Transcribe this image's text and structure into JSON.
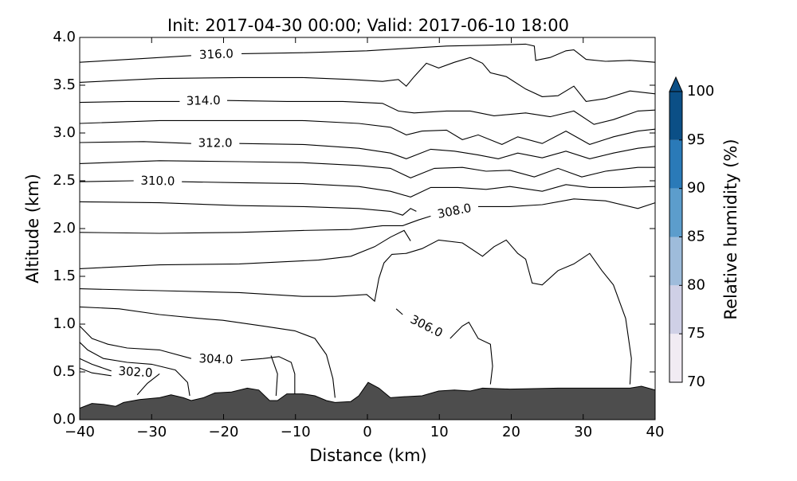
{
  "chart_data": {
    "type": "contour",
    "title": "Init: 2017-04-30 00:00; Valid: 2017-06-10 18:00",
    "x_label": "Distance (km)",
    "y_label": "Altitude (km)",
    "xlim": [
      -40,
      40
    ],
    "ylim": [
      0,
      4
    ],
    "xticks": [
      {
        "value": -40,
        "label": "−40"
      },
      {
        "value": -30,
        "label": "−30"
      },
      {
        "value": -20,
        "label": "−20"
      },
      {
        "value": -10,
        "label": "−10"
      },
      0,
      10,
      20,
      30,
      40
    ],
    "yticks": [
      {
        "value": 0,
        "label": "0.0"
      },
      0.5,
      {
        "value": 1,
        "label": "1.0"
      },
      1.5,
      {
        "value": 2,
        "label": "2.0"
      },
      2.5,
      {
        "value": 3,
        "label": "3.0"
      },
      3.5,
      {
        "value": 4,
        "label": "4.0"
      }
    ],
    "contour_color": "#000000",
    "contours": [
      {
        "label": "316.0",
        "x": [
          -40,
          -31.1,
          -24.5,
          null,
          -17.5,
          -9.0,
          -0.1,
          6.5,
          11.0,
          17.6,
          22.0,
          23.2,
          23.4,
          25.4,
          27.6,
          28.7,
          30.4,
          33.1,
          36.5,
          40
        ],
        "y": [
          3.74,
          3.78,
          3.81,
          null,
          3.83,
          3.84,
          3.86,
          3.89,
          3.91,
          3.92,
          3.93,
          3.91,
          3.76,
          3.79,
          3.86,
          3.87,
          3.77,
          3.75,
          3.76,
          3.74
        ]
      },
      {
        "x": [
          -40,
          -28.9,
          -17.8,
          -9.0,
          -2.3,
          2.1,
          4.3,
          5.4,
          6.5,
          8.2,
          9.9,
          12.1,
          14.3,
          16.0,
          17.1,
          19.3,
          22.0,
          24.3,
          26.5,
          28.7,
          30.4,
          33.1,
          36.5,
          40
        ],
        "y": [
          3.53,
          3.57,
          3.58,
          3.58,
          3.56,
          3.54,
          3.56,
          3.49,
          3.59,
          3.73,
          3.68,
          3.74,
          3.79,
          3.73,
          3.63,
          3.59,
          3.46,
          3.38,
          3.39,
          3.49,
          3.33,
          3.36,
          3.44,
          3.41
        ]
      },
      {
        "label": "314.0",
        "x": [
          -40,
          -33.4,
          -26.1,
          null,
          -19.5,
          -11.2,
          -3.4,
          2.1,
          4.3,
          6.5,
          11.0,
          14.3,
          17.6,
          22.0,
          25.4,
          28.7,
          31.5,
          34.2,
          37.6,
          40
        ],
        "y": [
          3.32,
          3.33,
          3.33,
          null,
          3.34,
          3.33,
          3.33,
          3.31,
          3.23,
          3.21,
          3.23,
          3.23,
          3.18,
          3.21,
          3.17,
          3.23,
          3.09,
          3.14,
          3.23,
          3.24
        ]
      },
      {
        "x": [
          -40,
          -28.9,
          -17.8,
          -9.0,
          -1.2,
          3.2,
          5.4,
          7.6,
          11.0,
          13.2,
          15.4,
          18.7,
          20.9,
          24.3,
          27.6,
          30.9,
          34.2,
          37.6,
          40
        ],
        "y": [
          3.1,
          3.13,
          3.13,
          3.13,
          3.1,
          3.06,
          2.98,
          3.02,
          3.03,
          2.93,
          2.98,
          2.88,
          2.96,
          2.89,
          3.02,
          2.88,
          2.96,
          3.02,
          3.04
        ]
      },
      {
        "label": "312.0",
        "x": [
          -40,
          -31.1,
          -24.5,
          null,
          -17.8,
          -9.0,
          -1.2,
          3.2,
          5.4,
          8.8,
          12.1,
          15.4,
          18.2,
          20.9,
          24.3,
          27.6,
          30.9,
          34.2,
          37.6,
          40
        ],
        "y": [
          2.9,
          2.91,
          2.89,
          null,
          2.89,
          2.88,
          2.84,
          2.79,
          2.73,
          2.83,
          2.81,
          2.77,
          2.73,
          2.79,
          2.74,
          2.81,
          2.73,
          2.79,
          2.84,
          2.86
        ]
      },
      {
        "x": [
          -40,
          -28.9,
          -17.8,
          -9.0,
          -1.2,
          3.2,
          6.0,
          9.3,
          13.2,
          16.5,
          19.8,
          23.2,
          26.5,
          29.8,
          33.1,
          37.6,
          40
        ],
        "y": [
          2.68,
          2.71,
          2.7,
          2.69,
          2.66,
          2.63,
          2.53,
          2.63,
          2.64,
          2.6,
          2.61,
          2.54,
          2.63,
          2.54,
          2.6,
          2.64,
          2.64
        ]
      },
      {
        "label": "310.0",
        "x": [
          -40,
          -32.5,
          null,
          -25.8,
          -17.8,
          -9.0,
          -1.2,
          3.2,
          6.0,
          8.8,
          12.6,
          16.5,
          19.8,
          24.3,
          27.6,
          30.9,
          35.3,
          40
        ],
        "y": [
          2.49,
          2.5,
          null,
          2.49,
          2.48,
          2.47,
          2.44,
          2.39,
          2.33,
          2.43,
          2.43,
          2.41,
          2.44,
          2.39,
          2.46,
          2.43,
          2.43,
          2.44
        ]
      },
      {
        "x": [
          -40,
          -28.9,
          -17.8,
          -9.0,
          -1.2,
          3.2,
          4.9,
          6.0,
          6.8
        ],
        "y": [
          2.28,
          2.27,
          2.24,
          2.23,
          2.21,
          2.18,
          2.14,
          2.21,
          2.18
        ]
      },
      {
        "label": "308.0",
        "x": [
          -40,
          -28.9,
          -17.8,
          -9.0,
          -2.3,
          2.1,
          4.9,
          7.1,
          8.8,
          null,
          15.4,
          19.8,
          24.3,
          28.7,
          33.1,
          37.6,
          40
        ],
        "y": [
          1.96,
          1.95,
          1.96,
          1.98,
          1.99,
          2.03,
          2.03,
          2.09,
          2.13,
          null,
          2.23,
          2.23,
          2.25,
          2.31,
          2.29,
          2.21,
          2.27
        ]
      },
      {
        "x": [
          -40,
          -28.9,
          -17.8,
          -6.8,
          -2.3,
          1.0,
          3.2,
          5.1,
          6.0
        ],
        "y": [
          1.58,
          1.62,
          1.63,
          1.67,
          1.71,
          1.81,
          1.91,
          1.98,
          1.87
        ]
      },
      {
        "x": [
          -40,
          -28.9,
          -17.8,
          -9.0,
          -4.5,
          -0.1,
          1.0,
          1.6,
          2.3,
          3.4,
          5.4,
          7.6,
          9.9,
          13.2,
          16.0,
          17.6,
          19.3,
          20.9,
          22.0,
          22.9,
          24.3,
          26.5,
          28.7,
          30.9,
          32.6,
          34.2,
          35.9,
          36.7,
          36.5
        ],
        "y": [
          1.37,
          1.35,
          1.33,
          1.29,
          1.29,
          1.31,
          1.24,
          1.48,
          1.64,
          1.73,
          1.74,
          1.79,
          1.88,
          1.85,
          1.71,
          1.81,
          1.88,
          1.74,
          1.68,
          1.43,
          1.41,
          1.56,
          1.63,
          1.74,
          1.56,
          1.41,
          1.06,
          0.64,
          0.37
        ]
      },
      {
        "label": "306.0",
        "x": [
          4.0,
          4.9,
          null,
          11.5,
          13.2,
          14.1,
          15.4,
          17.1,
          17.4,
          17.1
        ],
        "y": [
          1.16,
          1.1,
          null,
          0.85,
          0.98,
          1.02,
          0.85,
          0.79,
          0.56,
          0.37
        ]
      },
      {
        "x": [
          -40,
          -34.5,
          -28.9,
          -23.4,
          -20.1,
          -14.5,
          -10.1,
          -7.3,
          -5.7,
          -4.8,
          -4.5
        ],
        "y": [
          1.18,
          1.16,
          1.1,
          1.06,
          1.04,
          0.98,
          0.93,
          0.85,
          0.68,
          0.43,
          0.23
        ]
      },
      {
        "label": "304.0",
        "x": [
          -40,
          -38.3,
          -36.1,
          -33.4,
          -28.9,
          -24.5,
          null,
          -17.6,
          -14.5,
          -12.3,
          -10.6,
          -10.1,
          -10.1
        ],
        "y": [
          0.98,
          0.85,
          0.79,
          0.75,
          0.73,
          0.64,
          null,
          0.62,
          0.64,
          0.66,
          0.6,
          0.48,
          0.27
        ]
      },
      {
        "x": [
          -40,
          -38.9,
          -36.7,
          -33.4,
          -30.0,
          -26.7,
          -25.0,
          -24.7
        ],
        "y": [
          0.81,
          0.73,
          0.64,
          0.6,
          0.58,
          0.52,
          0.39,
          0.25
        ]
      },
      {
        "label": "302.0",
        "x": [
          -40,
          -38.3,
          -35.6,
          null,
          -28.9,
          -30.6,
          -32.0
        ],
        "y": [
          0.64,
          0.58,
          0.51,
          null,
          0.48,
          0.38,
          0.26
        ]
      },
      {
        "x": [
          -40,
          -38.3,
          -35.6
        ],
        "y": [
          0.54,
          0.49,
          0.46
        ]
      },
      {
        "x": [
          -13.4,
          -12.5,
          -12.7
        ],
        "y": [
          0.67,
          0.48,
          0.25
        ]
      }
    ],
    "terrain": {
      "color": "#4d4d4d",
      "x": [
        -40,
        -38.3,
        -36.7,
        -35.0,
        -33.9,
        -31.7,
        -28.9,
        -27.3,
        -25.6,
        -24.5,
        -22.8,
        -21.2,
        -18.9,
        -16.7,
        -15.1,
        -13.6,
        -12.5,
        -11.2,
        -9.0,
        -7.3,
        -5.7,
        -4.5,
        -2.3,
        -1.2,
        0.1,
        1.6,
        3.2,
        4.9,
        7.6,
        9.9,
        12.1,
        14.3,
        16.0,
        19.8,
        26.5,
        33.1,
        36.5,
        38.1,
        40
      ],
      "y": [
        0.12,
        0.17,
        0.16,
        0.14,
        0.18,
        0.21,
        0.23,
        0.26,
        0.23,
        0.2,
        0.23,
        0.28,
        0.29,
        0.33,
        0.31,
        0.2,
        0.2,
        0.27,
        0.27,
        0.25,
        0.2,
        0.18,
        0.19,
        0.25,
        0.39,
        0.33,
        0.23,
        0.24,
        0.25,
        0.3,
        0.31,
        0.3,
        0.33,
        0.32,
        0.33,
        0.33,
        0.33,
        0.35,
        0.31
      ]
    },
    "colorbar": {
      "label": "Relative humidity (%)",
      "ticks": [
        70,
        75,
        80,
        85,
        90,
        95,
        100
      ],
      "colors": [
        "#f1ebf3",
        "#cfd0e6",
        "#9ebcdb",
        "#5c9dcc",
        "#2a7ab8",
        "#0b4f86"
      ],
      "extend": "max"
    }
  }
}
